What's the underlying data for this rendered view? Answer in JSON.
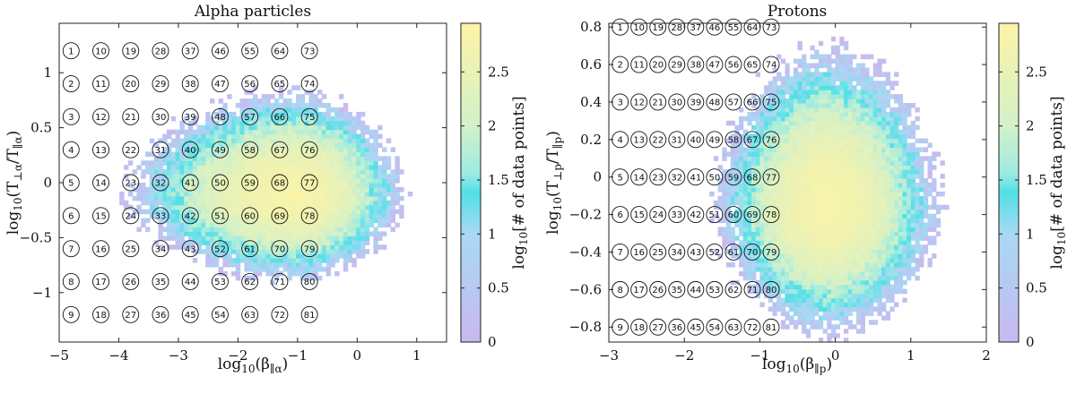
{
  "chart_data": [
    {
      "type": "heatmap",
      "title": "Alpha particles",
      "xlabel": "log10(β∥α)",
      "ylabel": "log10(T⊥α/T∥α)",
      "xlim": [
        -5,
        1.5
      ],
      "ylim": [
        -1.45,
        1.45
      ],
      "xticks": [
        -5,
        -4,
        -3,
        -2,
        -1,
        0,
        1
      ],
      "yticks": [
        -1,
        -0.5,
        0,
        0.5,
        1
      ],
      "colorbar": {
        "label": "log10[# of data points]",
        "min": 0,
        "max": 2.95,
        "ticks": [
          0,
          0.5,
          1,
          1.5,
          2,
          2.5
        ]
      },
      "bin_grid": {
        "columns": 9,
        "rows": 9,
        "x_centers": [
          -4.8,
          -4.3,
          -3.8,
          -3.3,
          -2.8,
          -2.3,
          -1.8,
          -1.3,
          -0.8
        ],
        "y_centers": [
          1.2,
          0.9,
          0.6,
          0.3,
          0.0,
          -0.3,
          -0.6,
          -0.9,
          -1.2
        ],
        "labels_shown_through": 81
      },
      "distribution": {
        "peak_x": -1.0,
        "peak_y": -0.1,
        "peak_value": 2.8,
        "x_min": -3.9,
        "x_max": 0.8,
        "y_min": -0.9,
        "y_max": 0.85
      }
    },
    {
      "type": "heatmap",
      "title": "Protons",
      "xlabel": "log10(β∥p)",
      "ylabel": "log10(T⊥p/T∥p)",
      "xlim": [
        -3,
        2
      ],
      "ylim": [
        -0.88,
        0.82
      ],
      "xticks": [
        -3,
        -2,
        -1,
        0,
        1,
        2
      ],
      "yticks": [
        -0.8,
        -0.6,
        -0.4,
        -0.2,
        0,
        0.2,
        0.4,
        0.6,
        0.8
      ],
      "colorbar": {
        "label": "log10[# of data points]",
        "min": 0,
        "max": 2.95,
        "ticks": [
          0,
          0.5,
          1,
          1.5,
          2,
          2.5
        ]
      },
      "bin_grid": {
        "columns": 9,
        "rows": 9,
        "x_centers": [
          -2.85,
          -2.6,
          -2.35,
          -2.1,
          -1.85,
          -1.6,
          -1.35,
          -1.1,
          -0.85
        ],
        "y_centers": [
          0.8,
          0.6,
          0.4,
          0.2,
          0.0,
          -0.2,
          -0.4,
          -0.6,
          -0.8
        ],
        "labels_shown_through": 81
      },
      "distribution": {
        "peak_x": -0.1,
        "peak_y": -0.15,
        "peak_value": 2.8,
        "x_min": -1.6,
        "x_max": 1.4,
        "y_min": -0.85,
        "y_max": 0.7
      }
    }
  ]
}
